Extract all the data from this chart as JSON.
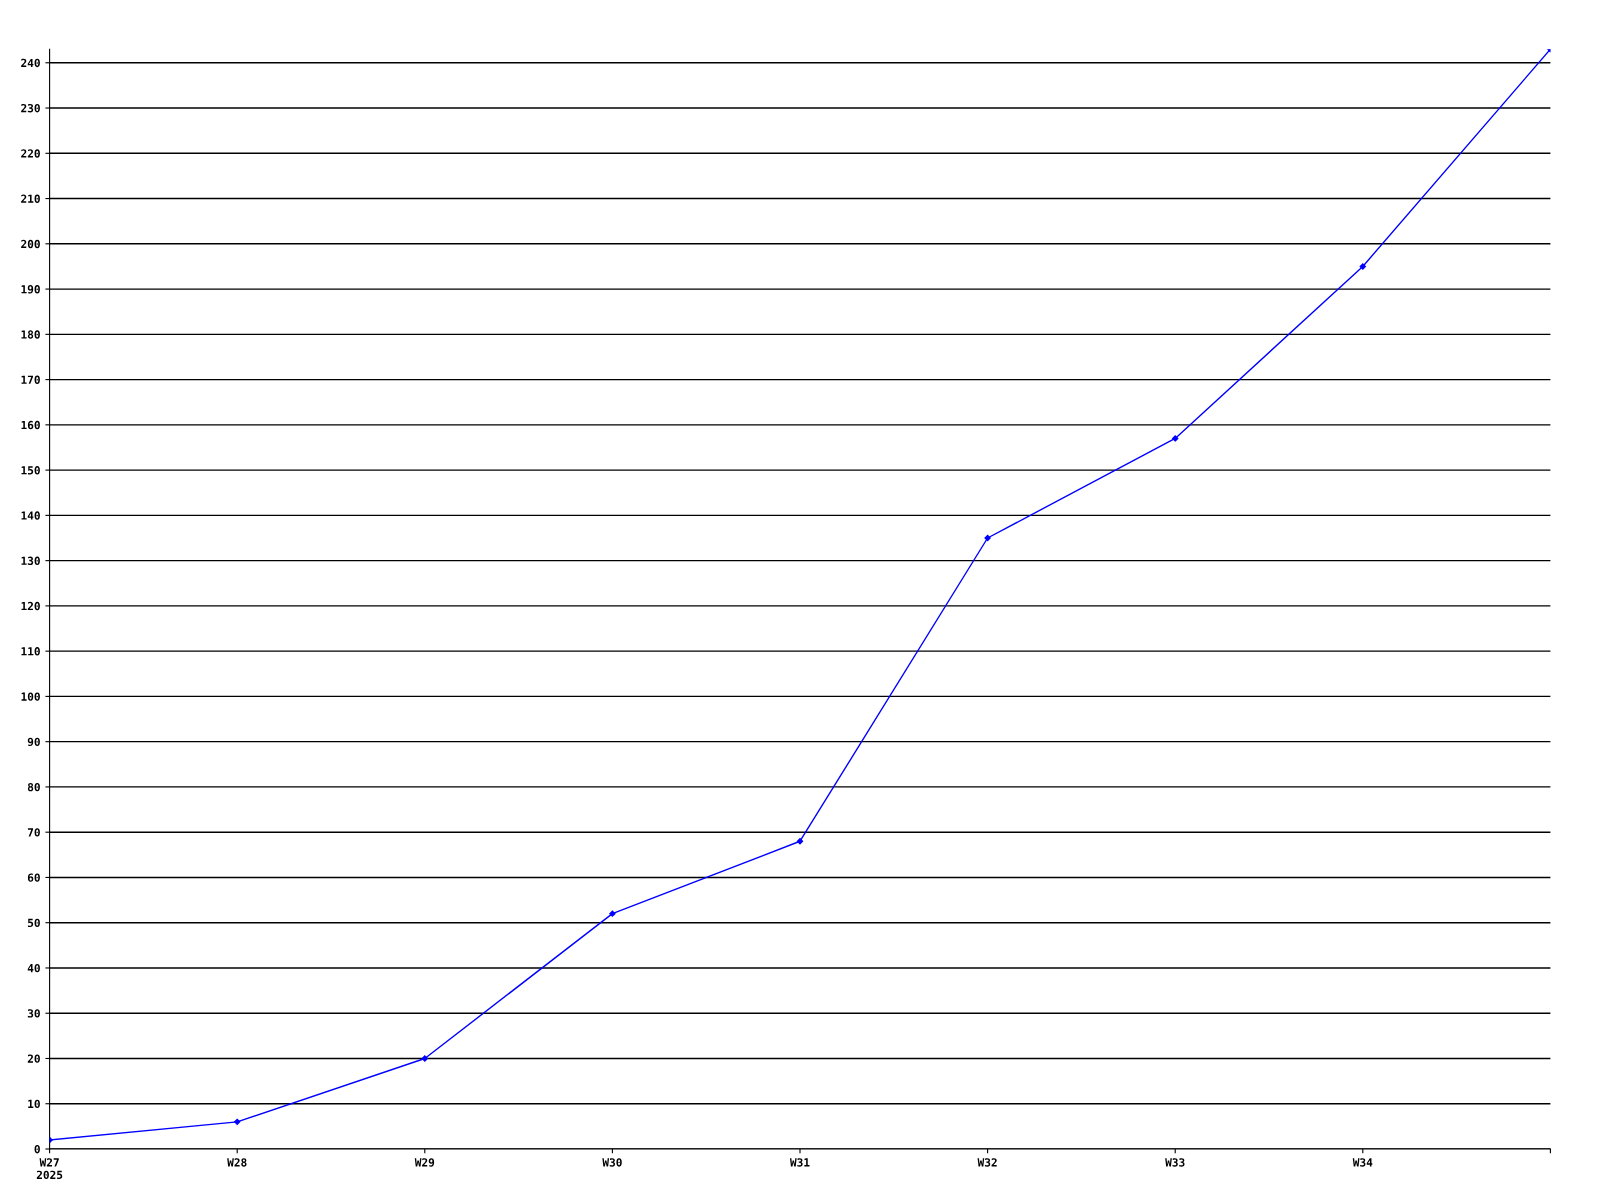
{
  "chart_data": {
    "type": "line",
    "categories": [
      "W27\n2025",
      "W28",
      "W29",
      "W30",
      "W31",
      "W32",
      "W33",
      "W34",
      null
    ],
    "series": [
      {
        "color": "#0000ff",
        "values": [
          2,
          6,
          20,
          52,
          68,
          135,
          157,
          195,
          243
        ]
      }
    ],
    "ylim": [
      0,
      243
    ],
    "yticks": [
      0,
      10,
      20,
      30,
      40,
      50,
      60,
      70,
      80,
      90,
      100,
      110,
      120,
      130,
      140,
      150,
      160,
      170,
      180,
      190,
      200,
      210,
      220,
      230,
      240
    ],
    "grid": "y",
    "marker": "diamond",
    "line_style": "solid"
  }
}
